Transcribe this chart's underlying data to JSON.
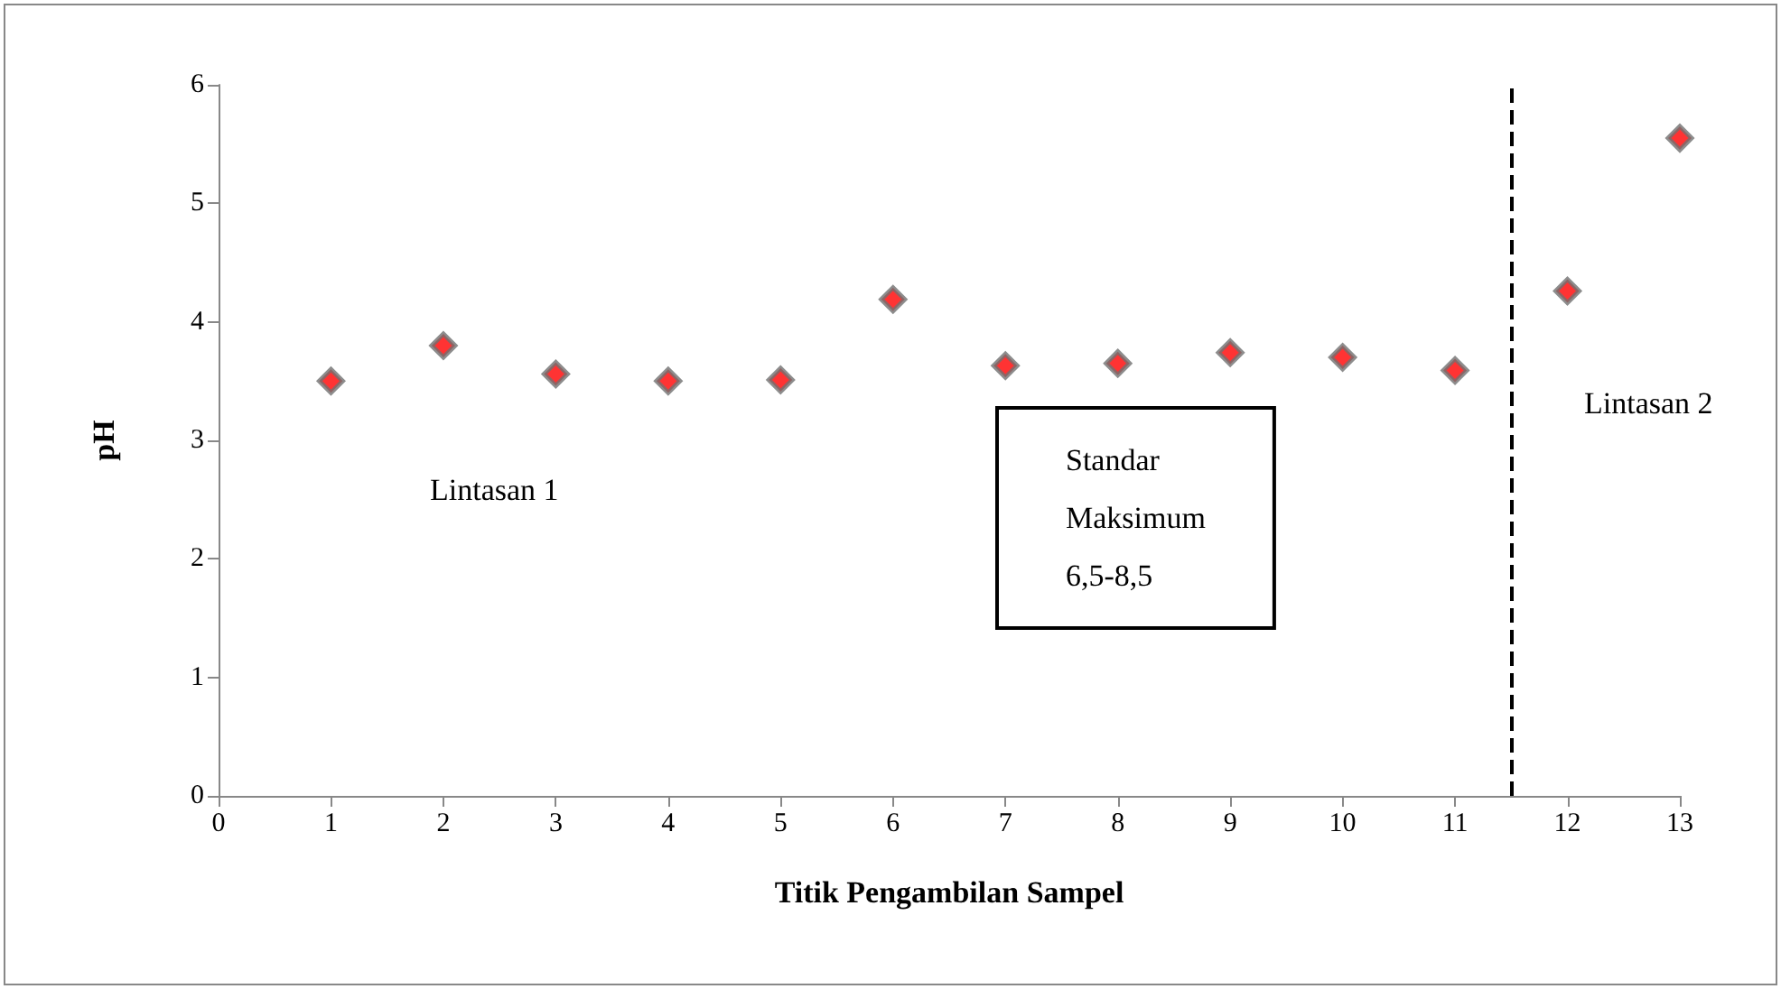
{
  "chart_data": {
    "type": "scatter",
    "xlabel": "Titik Pengambilan Sampel",
    "ylabel": "pH",
    "x": [
      1,
      2,
      3,
      4,
      5,
      6,
      7,
      8,
      9,
      10,
      11,
      12,
      13
    ],
    "values": [
      3.5,
      3.8,
      3.56,
      3.5,
      3.51,
      4.19,
      3.63,
      3.65,
      3.74,
      3.7,
      3.59,
      4.26,
      5.55
    ],
    "color": "#ff0000",
    "marker": "diamond",
    "xlim": [
      0,
      13
    ],
    "xticks": [
      0,
      1,
      2,
      3,
      4,
      5,
      6,
      7,
      8,
      9,
      10,
      11,
      12,
      13
    ],
    "ylim": [
      0,
      6
    ],
    "yticks": [
      0,
      1,
      2,
      3,
      4,
      5,
      6
    ],
    "grid": false,
    "ref_lines": [
      {
        "axis": "x",
        "value": 11.5,
        "color": "#000000",
        "line_style": "dashed"
      }
    ],
    "annotations": [
      "Lintasan 1",
      "Lintasan 2",
      "Standar\nMaksimum\n6,5-8,5"
    ]
  }
}
